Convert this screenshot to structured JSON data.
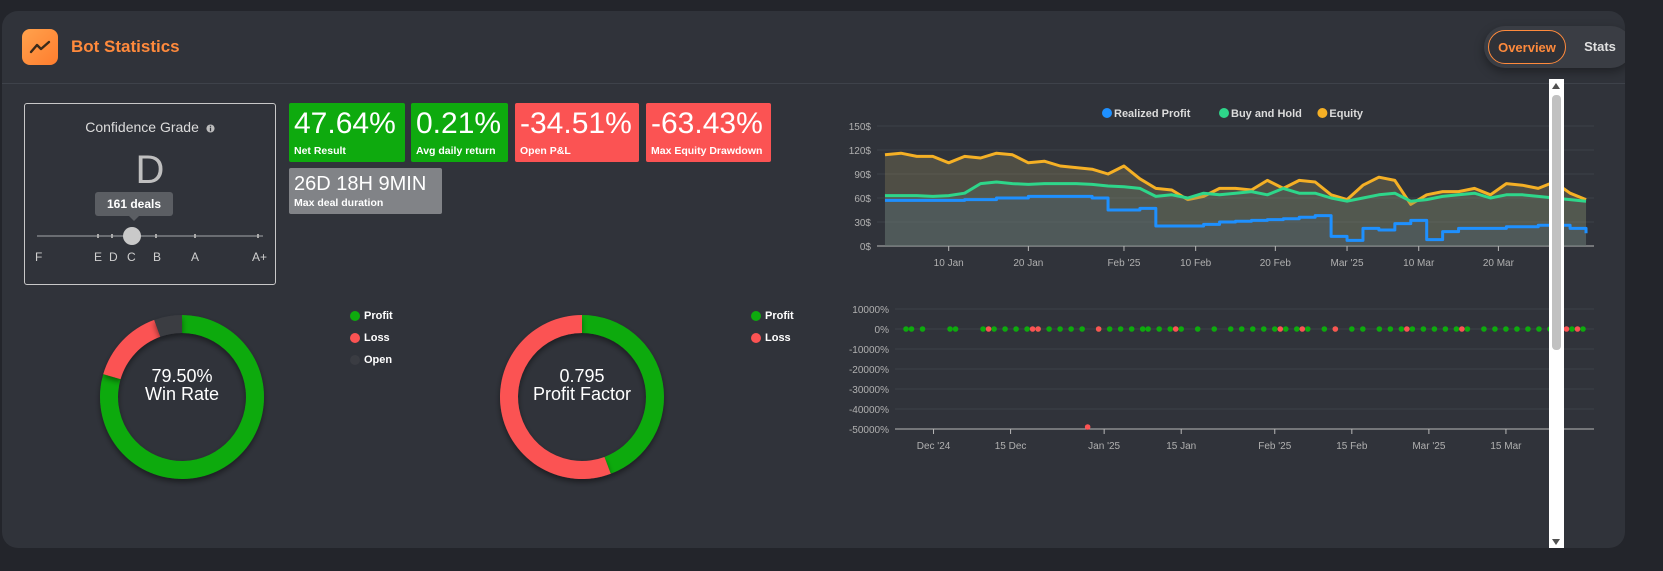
{
  "header": {
    "title": "Bot Statistics"
  },
  "tabs": {
    "overview": "Overview",
    "stats": "Stats"
  },
  "grade": {
    "title": "Confidence Grade",
    "letter": "D",
    "deals": "161 deals",
    "labels": [
      "F",
      "E",
      "D",
      "C",
      "B",
      "A",
      "A+"
    ]
  },
  "stats": [
    {
      "value": "47.64%",
      "label": "Net Result",
      "status": "positive",
      "color": "#0eaa0e"
    },
    {
      "value": "0.21%",
      "label": "Avg daily return",
      "status": "positive",
      "color": "#0eaa0e"
    },
    {
      "value": "-34.51%",
      "label": "Open P&L",
      "status": "negative",
      "color": "#fb5353"
    },
    {
      "value": "-63.43%",
      "label": "Max Equity Drawdown",
      "status": "negative",
      "color": "#fb5353"
    },
    {
      "value": "26D 18H 9MIN",
      "label": "Max deal duration",
      "status": "neutral",
      "color": "#818387"
    }
  ],
  "win_rate": {
    "value": "79.50%",
    "label": "Win Rate",
    "legend": [
      "Profit",
      "Loss",
      "Open"
    ],
    "colors": {
      "profit": "#0eaa0e",
      "loss": "#fb5353",
      "open": "#3a3c42"
    },
    "fractions": {
      "profit": 0.795,
      "loss": 0.15,
      "open": 0.055
    }
  },
  "profit_factor": {
    "value": "0.795",
    "label": "Profit Factor",
    "legend": [
      "Profit",
      "Loss"
    ],
    "colors": {
      "profit": "#0eaa0e",
      "loss": "#fb5353"
    },
    "fractions": {
      "profit": 0.443,
      "loss": 0.557
    }
  },
  "chart_data": [
    {
      "type": "line",
      "legend": [
        "Realized Profit",
        "Buy and Hold",
        "Equity"
      ],
      "colors": {
        "Realized Profit": "#1e90ff",
        "Buy and Hold": "#2ed68a",
        "Equity": "#f5b025"
      },
      "yticks": [
        "0$",
        "30$",
        "60$",
        "90$",
        "120$",
        "150$"
      ],
      "xticks": [
        "10 Jan",
        "20 Jan",
        "Feb '25",
        "10 Feb",
        "20 Feb",
        "Mar '25",
        "10 Mar",
        "20 Mar"
      ],
      "ylim": [
        0,
        150
      ],
      "x": [
        "Jan 02",
        "Jan 04",
        "Jan 06",
        "Jan 08",
        "Jan 10",
        "Jan 12",
        "Jan 14",
        "Jan 16",
        "Jan 18",
        "Jan 20",
        "Jan 22",
        "Jan 24",
        "Jan 26",
        "Jan 28",
        "Jan 30",
        "Feb 01",
        "Feb 03",
        "Feb 05",
        "Feb 07",
        "Feb 09",
        "Feb 11",
        "Feb 13",
        "Feb 15",
        "Feb 17",
        "Feb 19",
        "Feb 21",
        "Feb 23",
        "Feb 25",
        "Feb 27",
        "Mar 01",
        "Mar 03",
        "Mar 05",
        "Mar 07",
        "Mar 09",
        "Mar 11",
        "Mar 13",
        "Mar 15",
        "Mar 17",
        "Mar 19",
        "Mar 21",
        "Mar 23",
        "Mar 25",
        "Mar 27",
        "Mar 29",
        "Mar 31"
      ],
      "series": [
        {
          "name": "Realized Profit",
          "values": [
            57,
            57,
            57,
            57,
            57,
            58,
            58,
            60,
            60,
            62,
            62,
            62,
            62,
            60,
            45,
            45,
            47,
            25,
            25,
            25,
            27,
            30,
            31,
            32,
            33,
            34,
            36,
            38,
            12,
            7,
            22,
            20,
            28,
            32,
            8,
            18,
            22,
            22,
            22,
            24,
            24,
            26,
            26,
            22,
            16
          ]
        },
        {
          "name": "Buy and Hold",
          "values": [
            63,
            63,
            63,
            62,
            63,
            66,
            78,
            80,
            78,
            77,
            78,
            78,
            78,
            77,
            75,
            74,
            72,
            62,
            64,
            60,
            66,
            64,
            66,
            68,
            64,
            72,
            66,
            66,
            60,
            56,
            60,
            64,
            66,
            56,
            58,
            62,
            64,
            66,
            60,
            64,
            64,
            62,
            60,
            58,
            56
          ]
        },
        {
          "name": "Equity",
          "values": [
            114,
            116,
            112,
            112,
            104,
            112,
            110,
            116,
            114,
            104,
            106,
            100,
            98,
            96,
            90,
            100,
            84,
            72,
            70,
            58,
            62,
            72,
            72,
            70,
            82,
            72,
            82,
            80,
            64,
            58,
            76,
            86,
            82,
            52,
            64,
            68,
            68,
            72,
            64,
            78,
            76,
            72,
            80,
            66,
            58
          ]
        }
      ]
    },
    {
      "type": "scatter",
      "yticks": [
        "10000%",
        "0%",
        "-10000%",
        "-20000%",
        "-30000%",
        "-40000%",
        "-50000%"
      ],
      "xticks": [
        "Dec '24",
        "15 Dec",
        "Jan '25",
        "15 Jan",
        "Feb '25",
        "15 Feb",
        "Mar '25",
        "15 Mar"
      ],
      "ylim": [
        -50000,
        10000
      ],
      "series": [
        {
          "name": "Profit",
          "color": "#0eaa0e",
          "x": [
            "Nov 26",
            "Nov 27",
            "Nov 29",
            "Dec 04",
            "Dec 05",
            "Dec 10",
            "Dec 12",
            "Dec 14",
            "Dec 16",
            "Dec 18",
            "Dec 20",
            "Dec 22",
            "Dec 24",
            "Dec 26",
            "Dec 28",
            "Dec 31",
            "Jan 02",
            "Jan 04",
            "Jan 06",
            "Jan 08",
            "Jan 09",
            "Jan 11",
            "Jan 13",
            "Jan 15",
            "Jan 18",
            "Jan 21",
            "Jan 24",
            "Jan 26",
            "Jan 28",
            "Jan 30",
            "Feb 01",
            "Feb 03",
            "Feb 05",
            "Feb 07",
            "Feb 10",
            "Feb 12",
            "Feb 15",
            "Feb 17",
            "Feb 20",
            "Feb 22",
            "Feb 24",
            "Feb 26",
            "Feb 28",
            "Mar 02",
            "Mar 04",
            "Mar 06",
            "Mar 08",
            "Mar 11",
            "Mar 13",
            "Mar 15",
            "Mar 17",
            "Mar 19",
            "Mar 21",
            "Mar 23",
            "Mar 25",
            "Mar 27",
            "Mar 29"
          ],
          "y": [
            0,
            0,
            0,
            0,
            0,
            0,
            0,
            0,
            0,
            0,
            0,
            0,
            0,
            0,
            0,
            0,
            0,
            0,
            0,
            0,
            0,
            0,
            0,
            0,
            0,
            0,
            0,
            0,
            0,
            0,
            0,
            0,
            0,
            0,
            0,
            0,
            0,
            0,
            0,
            0,
            0,
            0,
            0,
            0,
            0,
            0,
            0,
            0,
            0,
            0,
            0,
            0,
            0,
            0,
            0,
            0,
            0
          ]
        },
        {
          "name": "Loss",
          "color": "#fb5353",
          "x": [
            "Dec 11",
            "Dec 19",
            "Dec 20",
            "Dec 31",
            "Jan 14",
            "Feb 02",
            "Feb 06",
            "Feb 12",
            "Feb 25",
            "Mar 07",
            "Mar 26",
            "Mar 28",
            "Dec 29"
          ],
          "y": [
            0,
            0,
            0,
            0,
            0,
            0,
            0,
            0,
            0,
            0,
            0,
            0,
            -49000
          ]
        }
      ]
    }
  ]
}
